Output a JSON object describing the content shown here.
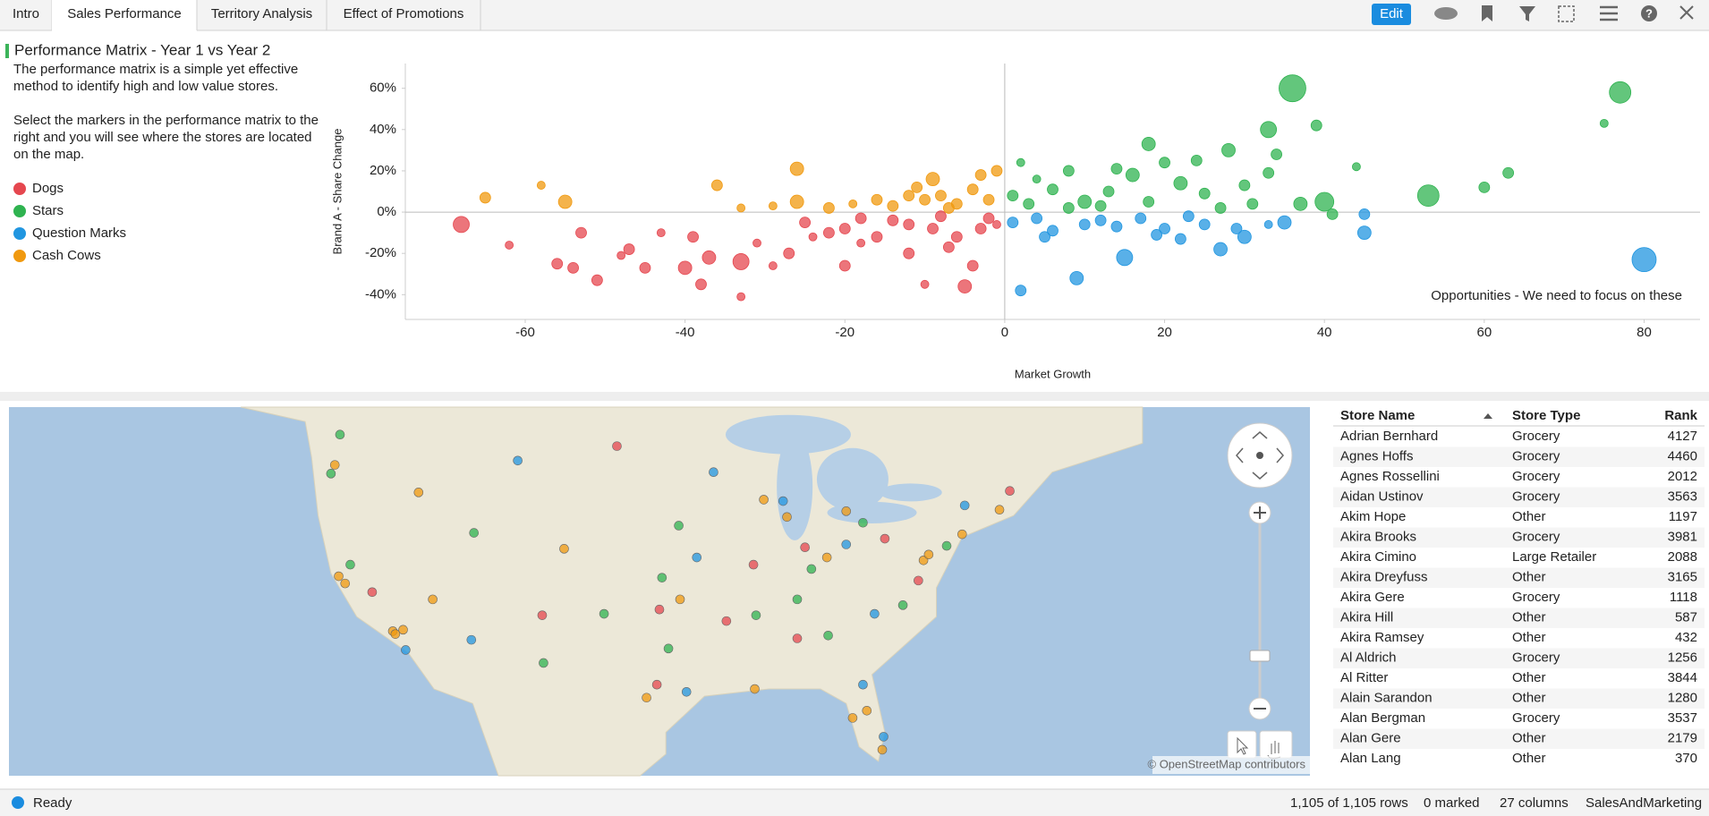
{
  "tabs": [
    "Intro",
    "Sales Performance",
    "Territory Analysis",
    "Effect of Promotions"
  ],
  "toolbar": {
    "edit": "Edit"
  },
  "panel": {
    "title": "Performance Matrix - Year 1 vs Year 2",
    "paragraphs": [
      [
        "The performance matrix is a simple yet effective",
        "method to identify high and low value stores."
      ],
      [
        "Select the markers in the performance matrix to the",
        "right and you will see where the stores are located",
        "on the map."
      ]
    ]
  },
  "chart_data": {
    "type": "scatter",
    "x_label": "Market Growth",
    "y_label": "Brand A - Share Change",
    "annotation": "Opportunities - We need to focus on these",
    "xlim": [
      -75,
      87
    ],
    "ylim": [
      -52,
      72
    ],
    "xticks": [
      -60,
      -40,
      -20,
      0,
      20,
      40,
      60,
      80
    ],
    "yticks": [
      {
        "value": -40,
        "label": "-40%"
      },
      {
        "value": -20,
        "label": "-20%"
      },
      {
        "value": 0,
        "label": "0%"
      },
      {
        "value": 20,
        "label": "20%"
      },
      {
        "value": 40,
        "label": "40%"
      },
      {
        "value": 60,
        "label": "60%"
      }
    ],
    "series": [
      {
        "name": "Dogs",
        "color": "#e5474f",
        "x": [
          -68,
          -62,
          -56,
          -54,
          -53,
          -51,
          -48,
          -47,
          -45,
          -43,
          -40,
          -39,
          -38,
          -37,
          -33,
          -33,
          -31,
          -29,
          -27,
          -25,
          -22,
          -20,
          -18,
          -16,
          -14,
          -12,
          -10,
          -9,
          -7,
          -5,
          -4,
          -3,
          -2,
          -18,
          -8,
          -12,
          -6,
          -20,
          -24,
          -1
        ],
        "y": [
          -6,
          -16,
          -25,
          -27,
          -10,
          -33,
          -21,
          -18,
          -27,
          -10,
          -27,
          -12,
          -35,
          -22,
          -24,
          -41,
          -15,
          -26,
          -20,
          -5,
          -10,
          -26,
          -15,
          -12,
          -4,
          -20,
          -35,
          -8,
          -17,
          -36,
          -26,
          -8,
          -3,
          -3,
          -2,
          -6,
          -12,
          -8,
          -12,
          -6
        ],
        "size": [
          6,
          3,
          4,
          4,
          4,
          4,
          3,
          4,
          4,
          3,
          5,
          4,
          4,
          5,
          6,
          3,
          3,
          3,
          4,
          4,
          4,
          4,
          3,
          4,
          4,
          4,
          3,
          4,
          4,
          5,
          4,
          4,
          4,
          4,
          4,
          4,
          4,
          4,
          3,
          3
        ]
      },
      {
        "name": "Stars",
        "color": "#2fb350",
        "x": [
          1,
          2,
          4,
          6,
          8,
          10,
          13,
          14,
          16,
          18,
          20,
          22,
          24,
          25,
          28,
          30,
          33,
          33,
          34,
          36,
          37,
          39,
          40,
          41,
          44,
          53,
          60,
          63,
          75,
          77,
          3,
          12,
          27,
          8,
          18,
          31
        ],
        "y": [
          8,
          24,
          16,
          11,
          20,
          5,
          10,
          21,
          18,
          33,
          24,
          14,
          25,
          9,
          30,
          13,
          19,
          40,
          28,
          60,
          4,
          42,
          5,
          -1,
          22,
          8,
          12,
          19,
          43,
          58,
          4,
          3,
          2,
          2,
          5,
          4
        ],
        "size": [
          4,
          3,
          3,
          4,
          4,
          5,
          4,
          4,
          5,
          5,
          4,
          5,
          4,
          4,
          5,
          4,
          4,
          6,
          4,
          10,
          5,
          4,
          7,
          4,
          3,
          8,
          4,
          4,
          3,
          8,
          4,
          4,
          4,
          4,
          4,
          4
        ]
      },
      {
        "name": "Question Marks",
        "color": "#2196e0",
        "x": [
          1,
          2,
          5,
          6,
          9,
          12,
          15,
          17,
          20,
          22,
          25,
          27,
          29,
          30,
          33,
          35,
          45,
          45,
          80,
          4,
          10,
          14,
          23,
          19
        ],
        "y": [
          -5,
          -38,
          -12,
          -9,
          -32,
          -4,
          -22,
          -3,
          -8,
          -13,
          -6,
          -18,
          -8,
          -12,
          -6,
          -5,
          -1,
          -10,
          -23,
          -3,
          -6,
          -7,
          -2,
          -11
        ],
        "size": [
          4,
          4,
          4,
          4,
          5,
          4,
          6,
          4,
          4,
          4,
          4,
          5,
          4,
          5,
          3,
          5,
          4,
          5,
          9,
          4,
          4,
          4,
          4,
          4
        ]
      },
      {
        "name": "Cash Cows",
        "color": "#f0990f",
        "x": [
          -65,
          -58,
          -55,
          -36,
          -33,
          -26,
          -26,
          -22,
          -16,
          -11,
          -9,
          -8,
          -6,
          -4,
          -3,
          -1,
          -2,
          -14,
          -19,
          -29,
          -7,
          -10,
          -12
        ],
        "y": [
          7,
          13,
          5,
          13,
          2,
          21,
          5,
          2,
          6,
          12,
          16,
          8,
          4,
          11,
          18,
          20,
          6,
          3,
          4,
          3,
          2,
          6,
          8
        ],
        "size": [
          4,
          3,
          5,
          4,
          3,
          5,
          5,
          4,
          4,
          4,
          5,
          4,
          4,
          4,
          4,
          4,
          4,
          4,
          3,
          3,
          4,
          4,
          4
        ]
      }
    ]
  },
  "map": {
    "attribution": "© OpenStreetMap contributors",
    "points": [
      {
        "lon": -122.3,
        "lat": 47.6,
        "series": 1
      },
      {
        "lon": -122.7,
        "lat": 45.5,
        "series": 3
      },
      {
        "lon": -123.0,
        "lat": 44.9,
        "series": 1
      },
      {
        "lon": -122.4,
        "lat": 37.8,
        "series": 3
      },
      {
        "lon": -121.9,
        "lat": 37.3,
        "series": 3
      },
      {
        "lon": -121.5,
        "lat": 38.6,
        "series": 1
      },
      {
        "lon": -119.8,
        "lat": 36.7,
        "series": 0
      },
      {
        "lon": -118.2,
        "lat": 34.0,
        "series": 3
      },
      {
        "lon": -118.0,
        "lat": 33.8,
        "series": 3
      },
      {
        "lon": -117.2,
        "lat": 32.7,
        "series": 2
      },
      {
        "lon": -117.4,
        "lat": 34.1,
        "series": 3
      },
      {
        "lon": -115.1,
        "lat": 36.2,
        "series": 3
      },
      {
        "lon": -112.1,
        "lat": 33.4,
        "series": 2
      },
      {
        "lon": -111.9,
        "lat": 40.8,
        "series": 1
      },
      {
        "lon": -116.2,
        "lat": 43.6,
        "series": 3
      },
      {
        "lon": -104.9,
        "lat": 39.7,
        "series": 3
      },
      {
        "lon": -106.6,
        "lat": 35.1,
        "series": 0
      },
      {
        "lon": -106.5,
        "lat": 31.8,
        "series": 1
      },
      {
        "lon": -97.7,
        "lat": 30.3,
        "series": 0
      },
      {
        "lon": -98.5,
        "lat": 29.4,
        "series": 3
      },
      {
        "lon": -95.4,
        "lat": 29.8,
        "series": 2
      },
      {
        "lon": -96.8,
        "lat": 32.8,
        "series": 1
      },
      {
        "lon": -97.5,
        "lat": 35.5,
        "series": 0
      },
      {
        "lon": -95.9,
        "lat": 36.2,
        "series": 3
      },
      {
        "lon": -94.6,
        "lat": 39.1,
        "series": 2
      },
      {
        "lon": -96.0,
        "lat": 41.3,
        "series": 1
      },
      {
        "lon": -93.3,
        "lat": 45.0,
        "series": 2
      },
      {
        "lon": -90.2,
        "lat": 38.6,
        "series": 0
      },
      {
        "lon": -90.1,
        "lat": 30.0,
        "series": 3
      },
      {
        "lon": -90.0,
        "lat": 35.1,
        "series": 1
      },
      {
        "lon": -87.6,
        "lat": 41.9,
        "series": 3
      },
      {
        "lon": -87.9,
        "lat": 43.0,
        "series": 2
      },
      {
        "lon": -86.2,
        "lat": 39.8,
        "series": 0
      },
      {
        "lon": -86.8,
        "lat": 36.2,
        "series": 1
      },
      {
        "lon": -86.8,
        "lat": 33.5,
        "series": 0
      },
      {
        "lon": -84.4,
        "lat": 33.7,
        "series": 1
      },
      {
        "lon": -83.0,
        "lat": 42.3,
        "series": 3
      },
      {
        "lon": -83.0,
        "lat": 40.0,
        "series": 2
      },
      {
        "lon": -84.5,
        "lat": 39.1,
        "series": 3
      },
      {
        "lon": -81.7,
        "lat": 41.5,
        "series": 1
      },
      {
        "lon": -80.0,
        "lat": 40.4,
        "series": 0
      },
      {
        "lon": -80.8,
        "lat": 35.2,
        "series": 2
      },
      {
        "lon": -78.6,
        "lat": 35.8,
        "series": 1
      },
      {
        "lon": -77.4,
        "lat": 37.5,
        "series": 0
      },
      {
        "lon": -77.0,
        "lat": 38.9,
        "series": 3
      },
      {
        "lon": -76.6,
        "lat": 39.3,
        "series": 3
      },
      {
        "lon": -75.2,
        "lat": 39.9,
        "series": 1
      },
      {
        "lon": -74.0,
        "lat": 40.7,
        "series": 3
      },
      {
        "lon": -73.8,
        "lat": 42.7,
        "series": 2
      },
      {
        "lon": -71.1,
        "lat": 42.4,
        "series": 3
      },
      {
        "lon": -70.3,
        "lat": 43.7,
        "series": 0
      },
      {
        "lon": -81.7,
        "lat": 30.3,
        "series": 2
      },
      {
        "lon": -81.4,
        "lat": 28.5,
        "series": 3
      },
      {
        "lon": -82.5,
        "lat": 28.0,
        "series": 3
      },
      {
        "lon": -80.2,
        "lat": 25.8,
        "series": 3
      },
      {
        "lon": -80.1,
        "lat": 26.7,
        "series": 2
      },
      {
        "lon": -85.7,
        "lat": 38.3,
        "series": 1
      },
      {
        "lon": -92.3,
        "lat": 34.7,
        "series": 0
      },
      {
        "lon": -101.8,
        "lat": 35.2,
        "series": 1
      },
      {
        "lon": -100.8,
        "lat": 46.8,
        "series": 0
      },
      {
        "lon": -108.5,
        "lat": 45.8,
        "series": 2
      },
      {
        "lon": -97.3,
        "lat": 37.7,
        "series": 1
      },
      {
        "lon": -89.4,
        "lat": 43.1,
        "series": 3
      }
    ]
  },
  "table": {
    "columns": [
      "Store Name",
      "Store Type",
      "Rank"
    ],
    "rows": [
      [
        "Adrian Bernhard",
        "Grocery",
        4127
      ],
      [
        "Agnes Hoffs",
        "Grocery",
        4460
      ],
      [
        "Agnes Rossellini",
        "Grocery",
        2012
      ],
      [
        "Aidan Ustinov",
        "Grocery",
        3563
      ],
      [
        "Akim Hope",
        "Other",
        1197
      ],
      [
        "Akira Brooks",
        "Grocery",
        3981
      ],
      [
        "Akira Cimino",
        "Large Retailer",
        2088
      ],
      [
        "Akira Dreyfuss",
        "Other",
        3165
      ],
      [
        "Akira Gere",
        "Grocery",
        1118
      ],
      [
        "Akira Hill",
        "Other",
        587
      ],
      [
        "Akira Ramsey",
        "Other",
        432
      ],
      [
        "Al Aldrich",
        "Grocery",
        1256
      ],
      [
        "Al Ritter",
        "Other",
        3844
      ],
      [
        "Alain Sarandon",
        "Other",
        1280
      ],
      [
        "Alan Bergman",
        "Grocery",
        3537
      ],
      [
        "Alan Gere",
        "Other",
        2179
      ],
      [
        "Alan Lang",
        "Other",
        370
      ]
    ]
  },
  "status": {
    "state": "Ready",
    "rows": "1,105 of 1,105 rows",
    "marked": "0 marked",
    "columns": "27 columns",
    "source": "SalesAndMarketing"
  }
}
